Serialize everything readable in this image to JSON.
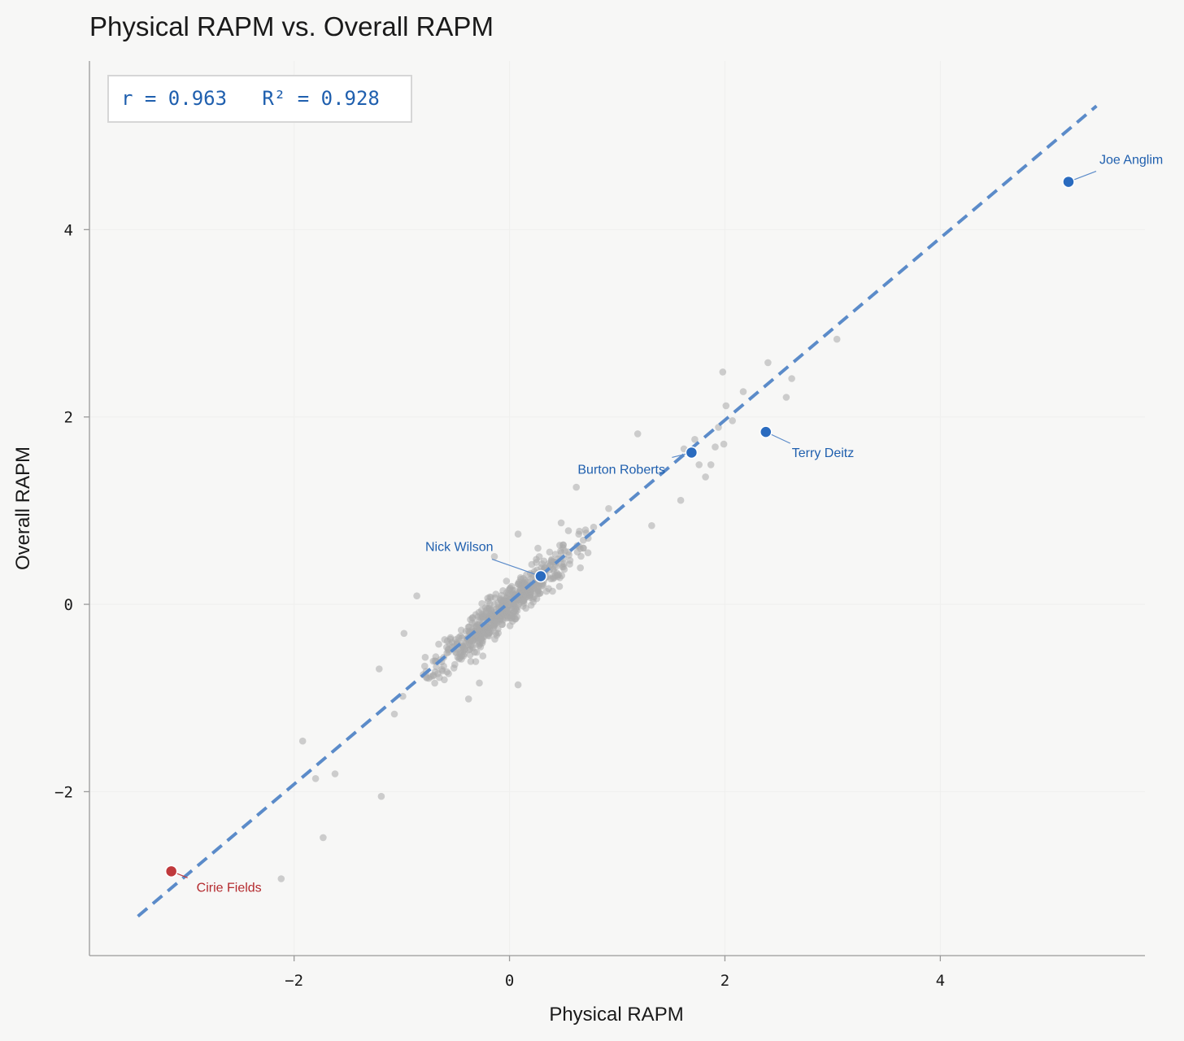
{
  "colors": {
    "background": "#f7f7f6",
    "scatter": "#a9a9a9",
    "fit_line": "#5b8bc9",
    "highlight_blue": "#2a6bbf",
    "highlight_red": "#c0393c",
    "label_blue": "#1f5fae",
    "label_red": "#b42a2e",
    "axis": "#9a9a9a",
    "grid": "#efefee"
  },
  "chart_data": {
    "type": "scatter",
    "title": "Physical RAPM vs. Overall RAPM",
    "xlabel": "Physical RAPM",
    "ylabel": "Overall RAPM",
    "xlim": [
      -3.9,
      5.9
    ],
    "ylim": [
      -3.75,
      5.8
    ],
    "xticks": [
      -2,
      0,
      2,
      4
    ],
    "yticks": [
      -2,
      0,
      2,
      4
    ],
    "xtick_labels": [
      "−2",
      "0",
      "2",
      "4"
    ],
    "ytick_labels": [
      "−2",
      "0",
      "2",
      "4"
    ],
    "grid": true,
    "stats_text": "r = 0.963   R² = 0.928",
    "fit_line": {
      "x": [
        -3.45,
        5.45
      ],
      "y": [
        -3.33,
        5.32
      ]
    },
    "outliers": [
      [
        3.04,
        2.83
      ],
      [
        2.4,
        2.58
      ],
      [
        2.62,
        2.41
      ],
      [
        2.57,
        2.21
      ],
      [
        1.98,
        2.48
      ],
      [
        2.17,
        2.27
      ],
      [
        2.01,
        2.12
      ],
      [
        2.07,
        1.96
      ],
      [
        1.94,
        1.89
      ],
      [
        1.99,
        1.71
      ],
      [
        1.91,
        1.68
      ],
      [
        1.19,
        1.82
      ],
      [
        1.62,
        1.66
      ],
      [
        1.72,
        1.76
      ],
      [
        1.76,
        1.49
      ],
      [
        1.82,
        1.36
      ],
      [
        1.87,
        1.49
      ],
      [
        1.59,
        1.11
      ],
      [
        1.32,
        0.84
      ],
      [
        0.62,
        1.25
      ],
      [
        0.48,
        0.87
      ],
      [
        0.08,
        0.75
      ],
      [
        -0.14,
        0.51
      ],
      [
        0.08,
        -0.86
      ],
      [
        -0.86,
        0.09
      ],
      [
        -0.98,
        -0.31
      ],
      [
        -1.21,
        -0.69
      ],
      [
        -1.19,
        -2.05
      ],
      [
        -1.92,
        -1.46
      ],
      [
        -1.62,
        -1.81
      ],
      [
        -1.73,
        -2.49
      ],
      [
        -2.12,
        -2.93
      ],
      [
        -1.8,
        -1.86
      ],
      [
        -0.38,
        -1.01
      ],
      [
        -0.28,
        -0.84
      ],
      [
        0.3,
        0.26
      ],
      [
        0.4,
        0.14
      ]
    ],
    "highlights": [
      {
        "name": "Joe Anglim",
        "x": 5.19,
        "y": 4.51,
        "color": "blue"
      },
      {
        "name": "Terry Deitz",
        "x": 2.38,
        "y": 1.84,
        "color": "blue"
      },
      {
        "name": "Burton Roberts",
        "x": 1.69,
        "y": 1.62,
        "color": "blue"
      },
      {
        "name": "Nick Wilson",
        "x": 0.29,
        "y": 0.3,
        "color": "blue"
      },
      {
        "name": "Cirie Fields",
        "x": -3.14,
        "y": -2.85,
        "color": "red"
      }
    ]
  }
}
